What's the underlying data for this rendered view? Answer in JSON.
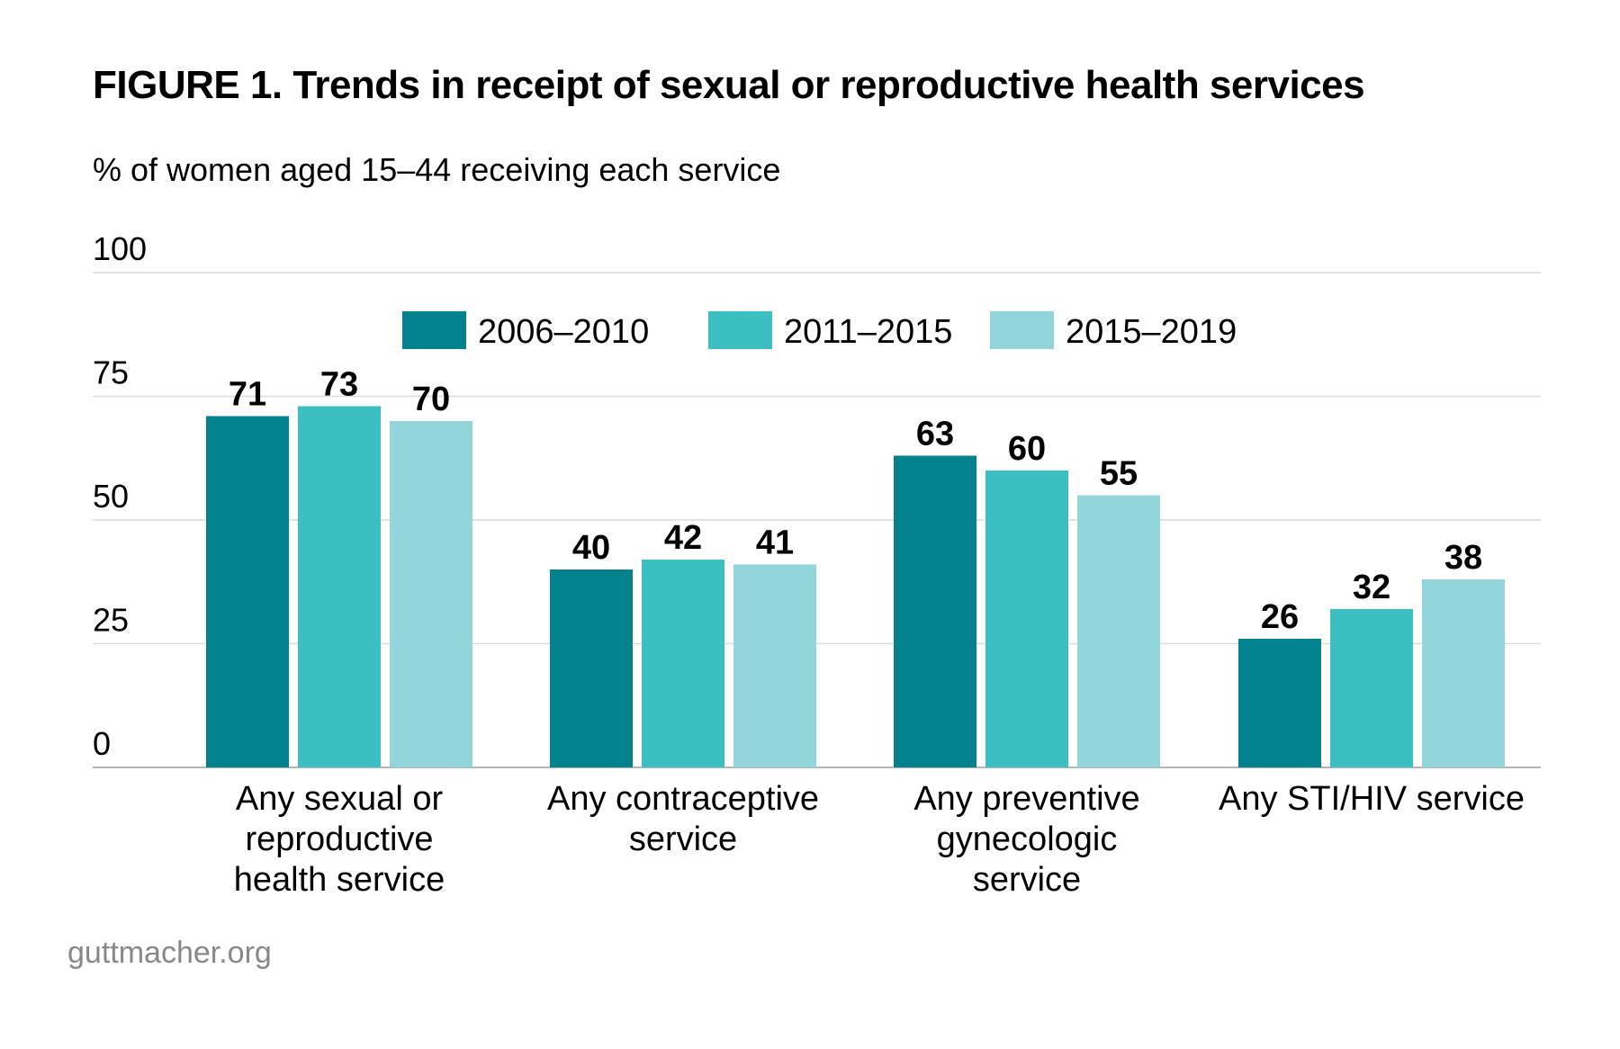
{
  "header": {
    "title": "FIGURE 1. Trends in receipt of sexual or reproductive health services",
    "subtitle": "% of women aged 15–44 receiving each service"
  },
  "footer": {
    "source": "guttmacher.org"
  },
  "chart_data": {
    "type": "bar",
    "categories": [
      "Any sexual or reproductive health service",
      "Any contraceptive service",
      "Any preventive gynecologic service",
      "Any STI/HIV service"
    ],
    "category_lines": [
      [
        "Any sexual or",
        "reproductive",
        "health service"
      ],
      [
        "Any contraceptive",
        "service"
      ],
      [
        "Any preventive",
        "gynecologic",
        "service"
      ],
      [
        "Any STI/HIV service"
      ]
    ],
    "series": [
      {
        "name": "2006–2010",
        "color": "#02828C",
        "values": [
          71,
          40,
          63,
          26
        ]
      },
      {
        "name": "2011–2015",
        "color": "#3BBFC2",
        "values": [
          73,
          42,
          60,
          32
        ]
      },
      {
        "name": "2015–2019",
        "color": "#92D5DA",
        "values": [
          70,
          41,
          55,
          38
        ]
      }
    ],
    "ylim": [
      0,
      100
    ],
    "yticks": [
      0,
      25,
      50,
      75,
      100
    ],
    "grid": true,
    "legend": "top-center",
    "data_labels": true
  }
}
